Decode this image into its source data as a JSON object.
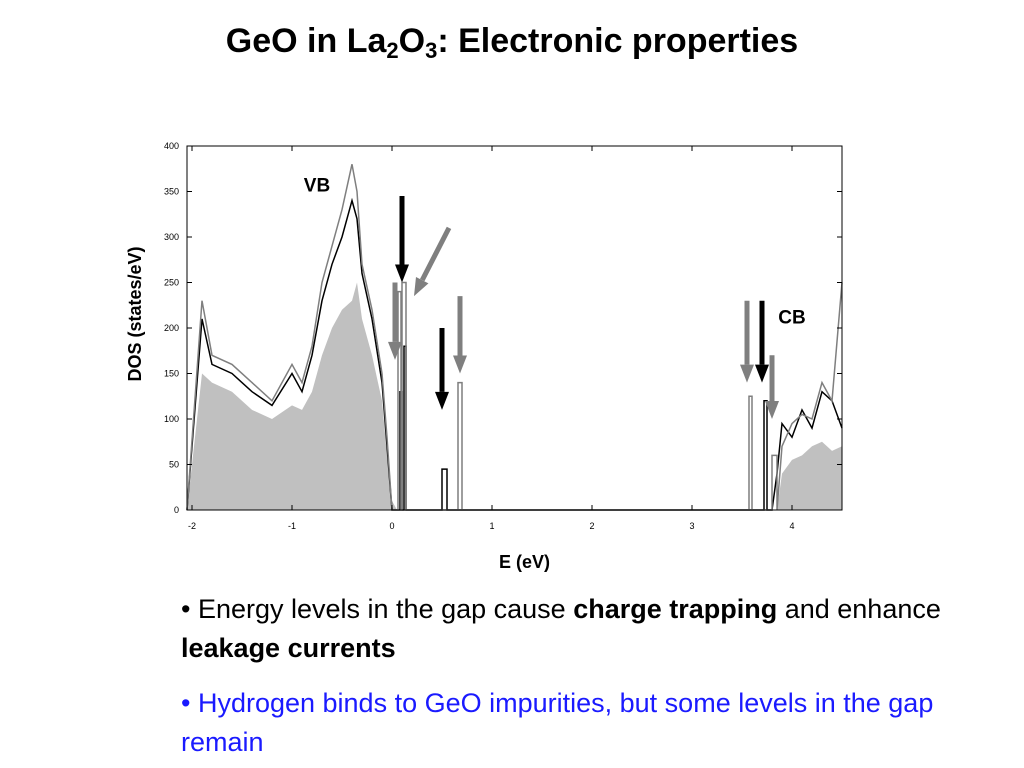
{
  "slide": {
    "title_prefix": "GeO in La",
    "title_sub1": "2",
    "title_mid": "O",
    "title_sub2": "3",
    "title_suffix": ": Electronic properties"
  },
  "bullets": [
    {
      "marker": "•",
      "parts": [
        {
          "text": " Energy levels in the gap cause ",
          "bold": false
        },
        {
          "text": "charge trapping",
          "bold": true
        },
        {
          "text": " and enhance ",
          "bold": false
        },
        {
          "text": "leakage currents",
          "bold": true
        }
      ]
    },
    {
      "marker": "•",
      "parts": [
        {
          "text": " Hydrogen binds to GeO impurities, but some levels in the gap remain",
          "bold": false
        }
      ]
    }
  ],
  "chart_data": {
    "type": "area",
    "xlabel": "E (eV)",
    "ylabel": "DOS (states/eV)",
    "xlim": [
      -2.05,
      4.5
    ],
    "ylim": [
      0,
      400
    ],
    "xticks": [
      -2,
      -1,
      0,
      1,
      2,
      3,
      4
    ],
    "yticks": [
      0,
      50,
      100,
      150,
      200,
      250,
      300,
      350,
      400
    ],
    "grid": false,
    "colors": {
      "fill": "#c0c0c0",
      "black_line": "#000000",
      "gray_line": "#7f7f7f"
    },
    "series": [
      {
        "style": "filled",
        "color": "#c0c0c0",
        "x": [
          -2.05,
          -1.9,
          -1.8,
          -1.6,
          -1.4,
          -1.2,
          -1.0,
          -0.9,
          -0.8,
          -0.7,
          -0.6,
          -0.5,
          -0.4,
          -0.35,
          -0.3,
          -0.2,
          -0.1,
          -0.05,
          0.0,
          0.05
        ],
        "y": [
          0,
          150,
          140,
          130,
          110,
          100,
          115,
          110,
          130,
          170,
          200,
          220,
          230,
          250,
          210,
          170,
          120,
          60,
          10,
          0
        ]
      },
      {
        "style": "filled",
        "color": "#c0c0c0",
        "x": [
          3.85,
          3.9,
          4.0,
          4.1,
          4.2,
          4.3,
          4.4,
          4.5
        ],
        "y": [
          0,
          40,
          55,
          60,
          70,
          75,
          65,
          70
        ]
      },
      {
        "style": "line",
        "color": "#000000",
        "x": [
          -2.05,
          -1.9,
          -1.8,
          -1.6,
          -1.4,
          -1.2,
          -1.0,
          -0.9,
          -0.8,
          -0.7,
          -0.6,
          -0.5,
          -0.4,
          -0.35,
          -0.3,
          -0.2,
          -0.1,
          -0.05,
          0.0,
          0.05,
          0.08,
          0.08,
          0.1,
          0.1,
          0.12,
          0.12,
          0.14,
          0.14,
          0.5,
          0.5,
          0.55,
          0.55,
          3.72,
          3.72,
          3.75,
          3.75,
          3.8,
          3.85,
          3.9,
          4.0,
          4.1,
          4.2,
          4.3,
          4.4,
          4.5
        ],
        "y": [
          0,
          210,
          160,
          150,
          130,
          115,
          150,
          130,
          170,
          230,
          270,
          300,
          340,
          320,
          260,
          210,
          140,
          70,
          0,
          0,
          0,
          130,
          130,
          0,
          0,
          180,
          180,
          0,
          0,
          45,
          45,
          0,
          0,
          120,
          120,
          0,
          0,
          40,
          95,
          80,
          110,
          90,
          130,
          120,
          90
        ]
      },
      {
        "style": "line",
        "color": "#7f7f7f",
        "x": [
          -2.05,
          -1.9,
          -1.8,
          -1.6,
          -1.4,
          -1.2,
          -1.0,
          -0.9,
          -0.8,
          -0.7,
          -0.6,
          -0.5,
          -0.4,
          -0.35,
          -0.3,
          -0.2,
          -0.1,
          -0.05,
          0.0,
          0.05,
          0.06,
          0.06,
          0.09,
          0.09,
          0.1,
          0.1,
          0.14,
          0.14,
          0.66,
          0.66,
          0.7,
          0.7,
          3.57,
          3.57,
          3.6,
          3.6,
          3.8,
          3.8,
          3.85,
          3.85,
          3.9,
          4.0,
          4.1,
          4.2,
          4.3,
          4.4,
          4.5
        ],
        "y": [
          0,
          230,
          170,
          160,
          140,
          120,
          160,
          140,
          180,
          250,
          290,
          330,
          380,
          350,
          270,
          220,
          150,
          80,
          0,
          0,
          0,
          240,
          240,
          0,
          0,
          250,
          250,
          0,
          0,
          140,
          140,
          0,
          0,
          125,
          125,
          0,
          0,
          60,
          60,
          0,
          70,
          95,
          105,
          100,
          140,
          120,
          250
        ]
      }
    ],
    "annotations": [
      {
        "text": "VB",
        "x": -0.75,
        "y": 350
      },
      {
        "text": "CB",
        "x": 4.0,
        "y": 205
      }
    ],
    "arrows": [
      {
        "color": "#000000",
        "x": 0.1,
        "y_top": 345,
        "y_tip": 250
      },
      {
        "color": "#7f7f7f",
        "x": 0.03,
        "y_top": 250,
        "y_tip": 165
      },
      {
        "color": "#7f7f7f",
        "x": 0.2,
        "y_top": 310,
        "y_tip": 235,
        "x_tip": 0.22,
        "x_top": 0.57,
        "diagonal": true
      },
      {
        "color": "#000000",
        "x": 0.5,
        "y_top": 200,
        "y_tip": 110
      },
      {
        "color": "#7f7f7f",
        "x": 0.68,
        "y_top": 235,
        "y_tip": 150
      },
      {
        "color": "#7f7f7f",
        "x": 3.55,
        "y_top": 230,
        "y_tip": 140
      },
      {
        "color": "#000000",
        "x": 3.7,
        "y_top": 230,
        "y_tip": 140
      },
      {
        "color": "#7f7f7f",
        "x": 3.8,
        "y_top": 170,
        "y_tip": 100
      }
    ]
  }
}
